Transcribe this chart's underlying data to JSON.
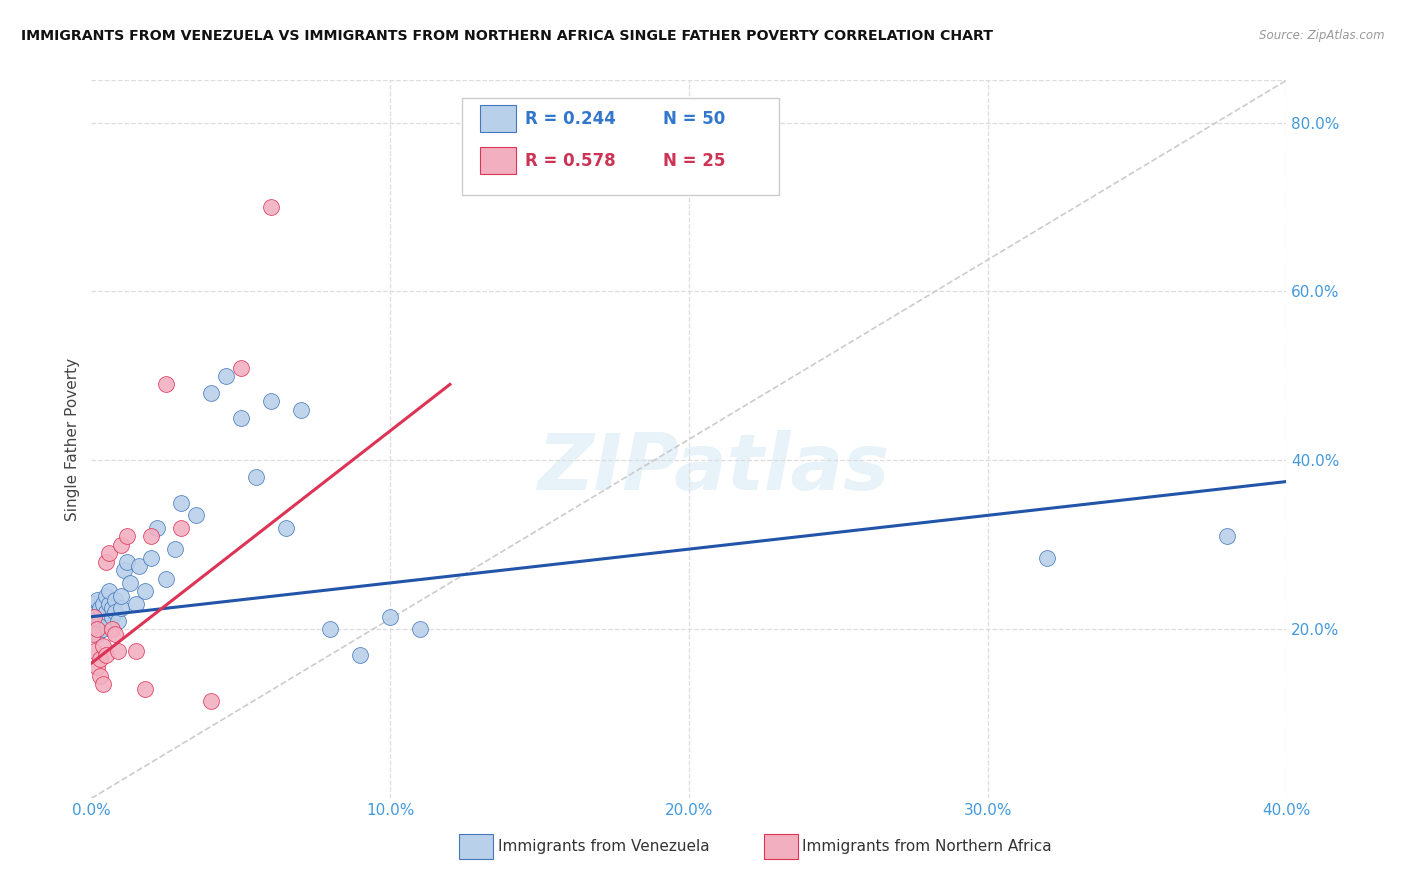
{
  "title": "IMMIGRANTS FROM VENEZUELA VS IMMIGRANTS FROM NORTHERN AFRICA SINGLE FATHER POVERTY CORRELATION CHART",
  "source": "Source: ZipAtlas.com",
  "xlabel_blue": "Immigrants from Venezuela",
  "xlabel_pink": "Immigrants from Northern Africa",
  "ylabel": "Single Father Poverty",
  "xlim": [
    0.0,
    0.4
  ],
  "ylim": [
    0.0,
    0.85
  ],
  "xticks": [
    0.0,
    0.1,
    0.2,
    0.3,
    0.4
  ],
  "yticks_right": [
    0.2,
    0.4,
    0.6,
    0.8
  ],
  "blue_R": 0.244,
  "blue_N": 50,
  "pink_R": 0.578,
  "pink_N": 25,
  "blue_face_color": "#b8d0ea",
  "pink_face_color": "#f2afc0",
  "blue_edge_color": "#4477bb",
  "pink_edge_color": "#dd3355",
  "blue_line_color": "#2255aa",
  "pink_line_color": "#dd3355",
  "diag_color": "#cccccc",
  "grid_color": "#dddddd",
  "tick_color": "#4499dd",
  "watermark": "ZIPatlas",
  "blue_scatter_x": [
    0.0005,
    0.001,
    0.001,
    0.001,
    0.002,
    0.002,
    0.002,
    0.002,
    0.003,
    0.003,
    0.003,
    0.004,
    0.004,
    0.005,
    0.005,
    0.005,
    0.006,
    0.006,
    0.007,
    0.007,
    0.008,
    0.008,
    0.009,
    0.01,
    0.01,
    0.011,
    0.012,
    0.013,
    0.015,
    0.016,
    0.018,
    0.02,
    0.022,
    0.025,
    0.028,
    0.03,
    0.035,
    0.04,
    0.045,
    0.05,
    0.055,
    0.06,
    0.065,
    0.07,
    0.08,
    0.09,
    0.1,
    0.11,
    0.32,
    0.38
  ],
  "blue_scatter_y": [
    0.215,
    0.225,
    0.2,
    0.23,
    0.21,
    0.22,
    0.195,
    0.235,
    0.205,
    0.215,
    0.225,
    0.2,
    0.23,
    0.24,
    0.21,
    0.22,
    0.23,
    0.245,
    0.215,
    0.225,
    0.235,
    0.22,
    0.21,
    0.225,
    0.24,
    0.27,
    0.28,
    0.255,
    0.23,
    0.275,
    0.245,
    0.285,
    0.32,
    0.26,
    0.295,
    0.35,
    0.335,
    0.48,
    0.5,
    0.45,
    0.38,
    0.47,
    0.32,
    0.46,
    0.2,
    0.17,
    0.215,
    0.2,
    0.285,
    0.31
  ],
  "pink_scatter_x": [
    0.0005,
    0.001,
    0.001,
    0.002,
    0.002,
    0.003,
    0.003,
    0.004,
    0.004,
    0.005,
    0.005,
    0.006,
    0.007,
    0.008,
    0.009,
    0.01,
    0.012,
    0.015,
    0.018,
    0.02,
    0.025,
    0.03,
    0.04,
    0.05,
    0.06
  ],
  "pink_scatter_y": [
    0.195,
    0.175,
    0.215,
    0.155,
    0.2,
    0.165,
    0.145,
    0.135,
    0.18,
    0.17,
    0.28,
    0.29,
    0.2,
    0.195,
    0.175,
    0.3,
    0.31,
    0.175,
    0.13,
    0.31,
    0.49,
    0.32,
    0.115,
    0.51,
    0.7
  ],
  "blue_line_x0": 0.0,
  "blue_line_y0": 0.215,
  "blue_line_x1": 0.4,
  "blue_line_y1": 0.375,
  "pink_line_x0": 0.0,
  "pink_line_y0": 0.16,
  "pink_line_x1": 0.12,
  "pink_line_y1": 0.49
}
